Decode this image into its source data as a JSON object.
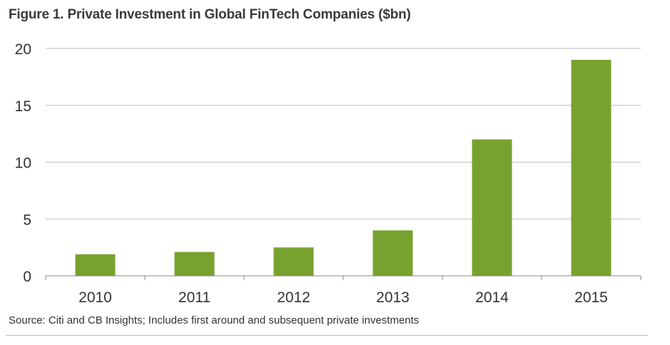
{
  "chart_data": {
    "type": "bar",
    "title": "Figure 1. Private Investment in Global FinTech Companies ($bn)",
    "categories": [
      "2010",
      "2011",
      "2012",
      "2013",
      "2014",
      "2015"
    ],
    "values": [
      1.9,
      2.1,
      2.5,
      4.0,
      12.0,
      19.0
    ],
    "ylim": [
      0,
      20
    ],
    "yticks": [
      "0",
      "5",
      "10",
      "15",
      "20"
    ],
    "xlabel": "",
    "ylabel": "",
    "grid": true,
    "bar_color": "#78a22f",
    "source": "Source: Citi and CB Insights; Includes first around and subsequent private investments"
  }
}
